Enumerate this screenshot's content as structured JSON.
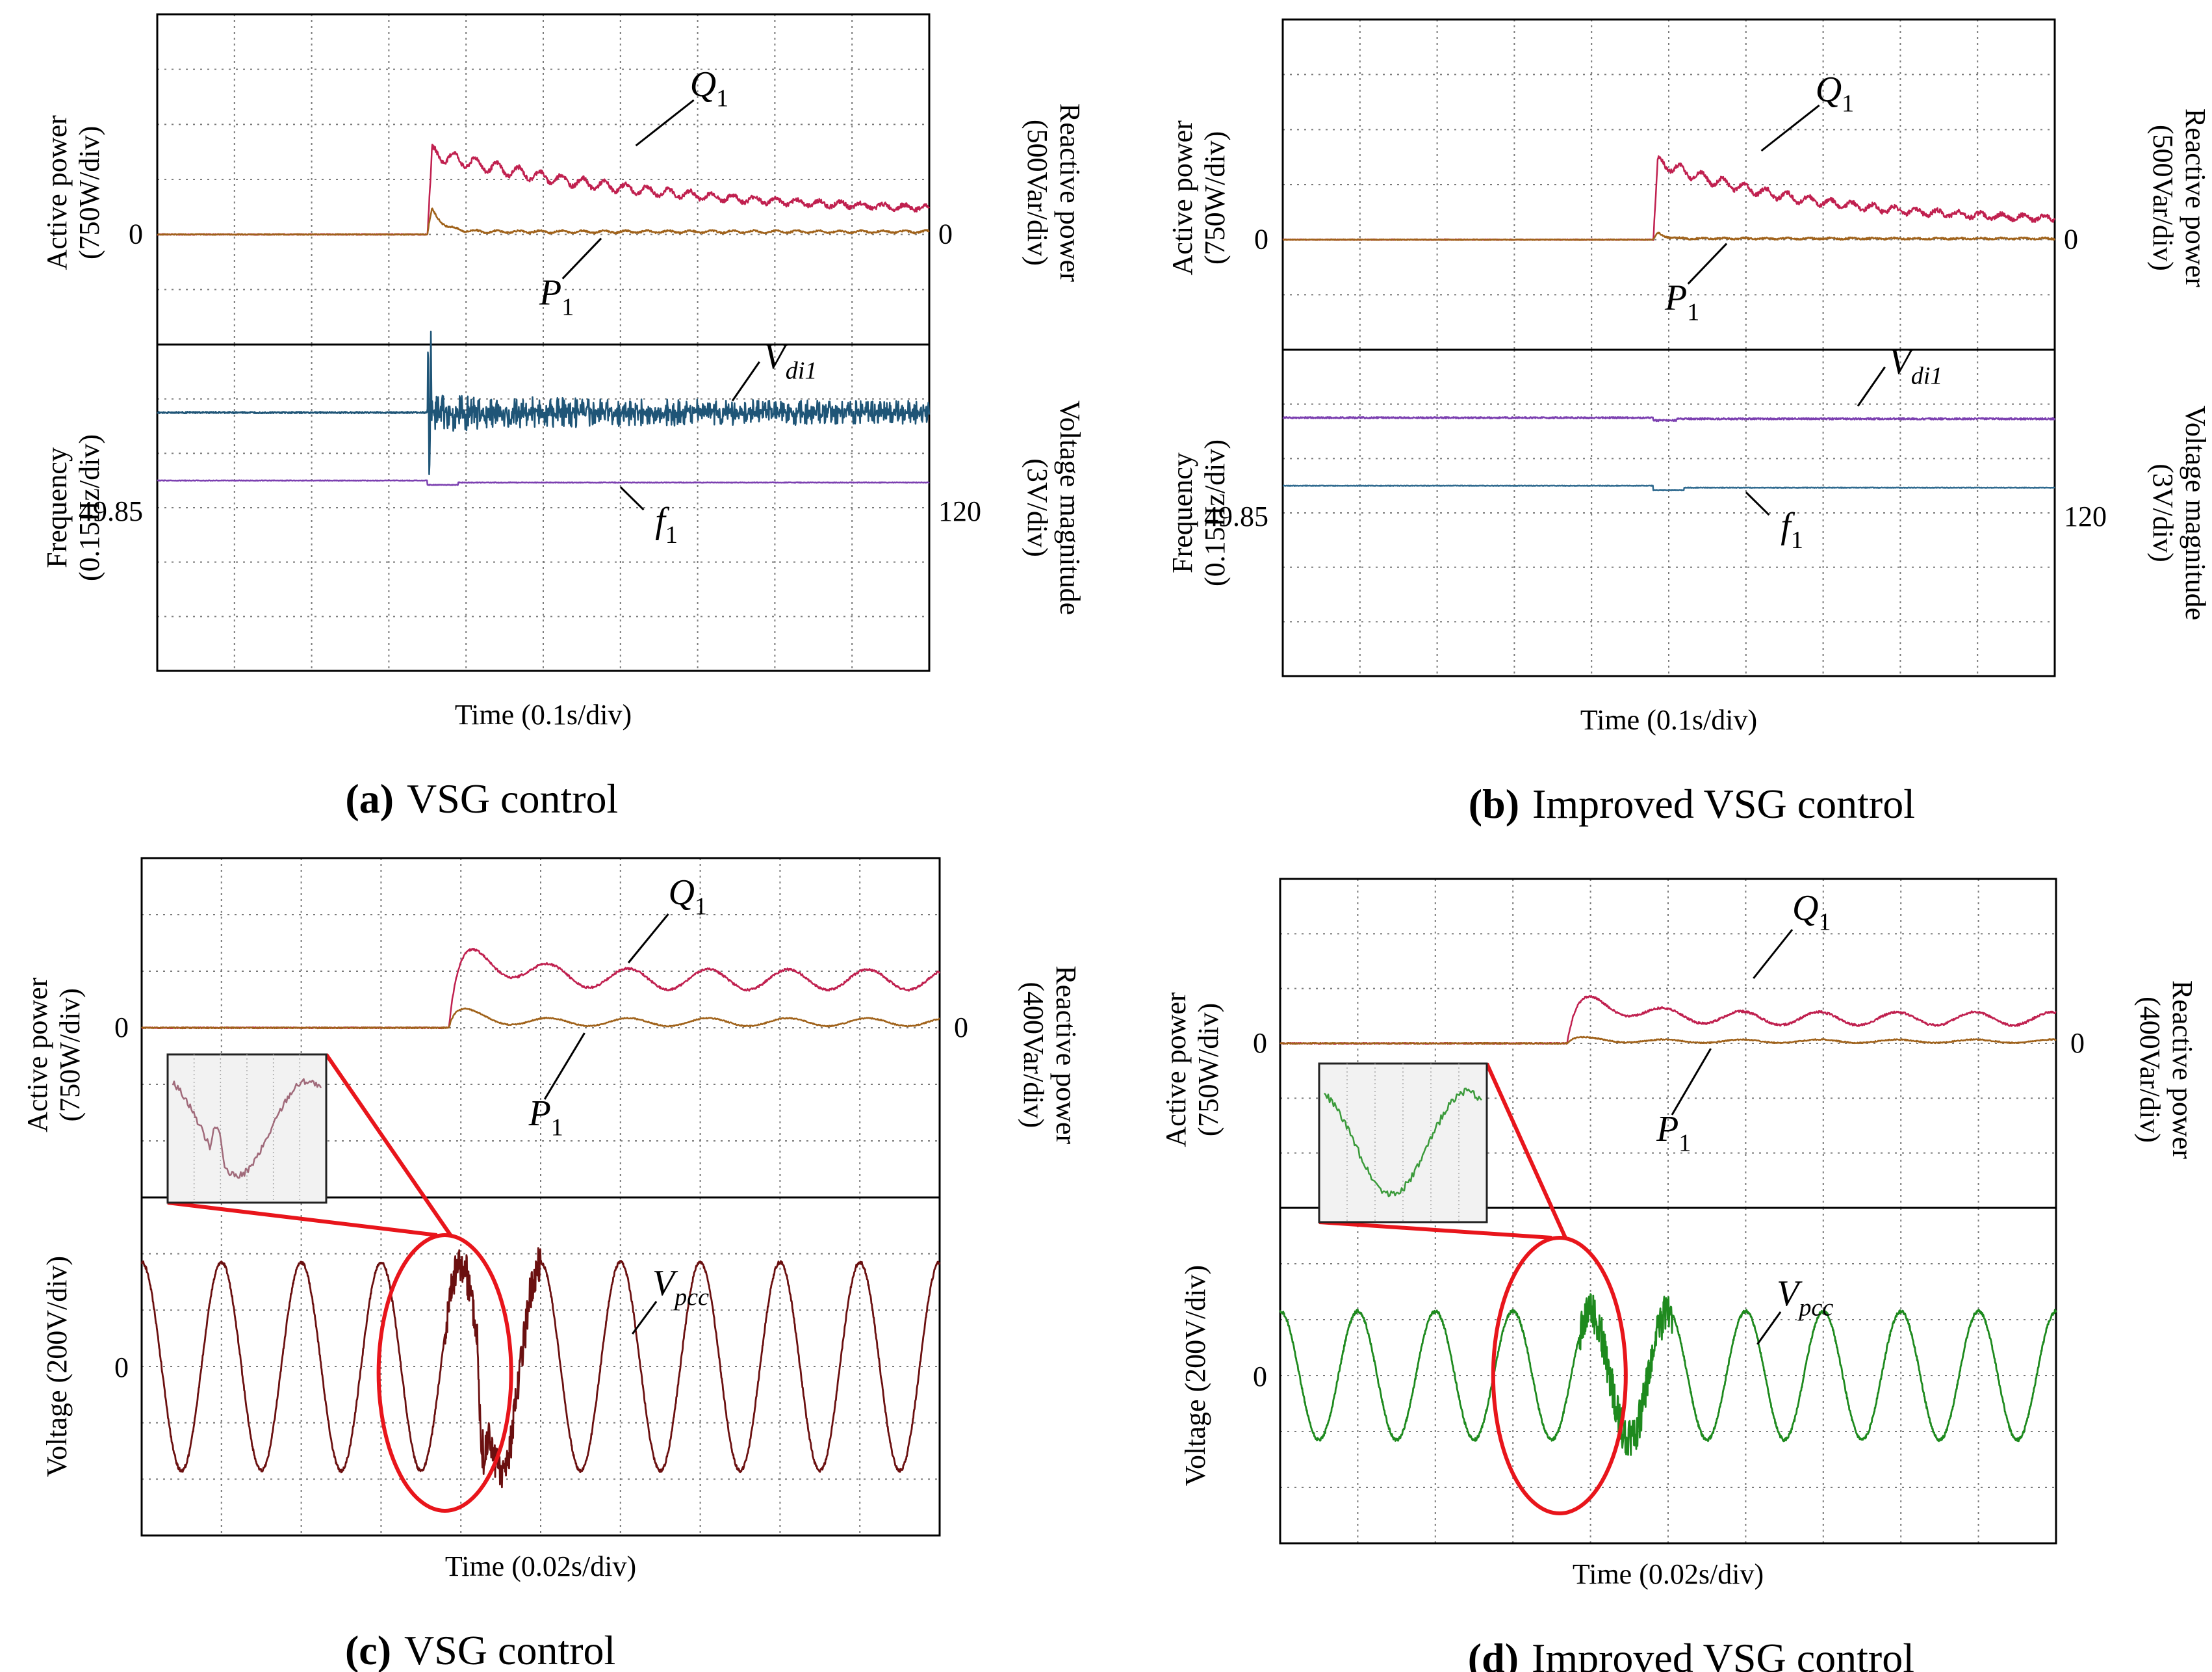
{
  "colors": {
    "background": "#ffffff",
    "frame": "#000000",
    "grid": "#7a7a7a",
    "q_trace": "#c0204f",
    "p_trace": "#a0621a",
    "vdi_trace_a": "#1f5577",
    "f_trace_a": "#7b3fb0",
    "vdi_trace_b": "#7b3fb0",
    "f_trace_b": "#2f6a8f",
    "vpcc_c": "#6b1010",
    "vpcc_d": "#1e8a1e",
    "highlight": "#e8151b",
    "inset_bg": "#f2f2f2"
  },
  "chart_data": [
    {
      "id": "a",
      "type": "line",
      "caption_letter": "(a)",
      "caption_text": "VSG control",
      "xlabel": "Time (0.1s/div)",
      "x_divisions": 10,
      "top_panel": {
        "left_ylabel": [
          "Active power",
          "(750W/div)"
        ],
        "right_ylabel": [
          "Reactive power",
          "(500Var/div)"
        ],
        "left_zero_label": "0",
        "right_zero_label": "0",
        "y_divisions": 6,
        "series": [
          {
            "name": "Q1",
            "unit": "div",
            "step_div": 3.5,
            "peak_div": 1.5,
            "settle_div": 0.35,
            "tau_div": 3.0,
            "ripple_div": 0.12
          },
          {
            "name": "P1",
            "unit": "div",
            "step_div": 3.5,
            "peak_div": 0.65,
            "settle_div": 0.05,
            "tau_div": 0.15,
            "ripple_div": 0.02
          }
        ],
        "labels": {
          "q_main": "Q",
          "q_sub": "1",
          "p_main": "P",
          "p_sub": "1"
        }
      },
      "bottom_panel": {
        "left_ylabel": [
          "Frequency",
          "(0.15Hz/div)"
        ],
        "right_ylabel": [
          "Voltage magnitude",
          "(3V/div)"
        ],
        "left_ref_label": "49.85",
        "right_ref_label": "120",
        "y_divisions": 6,
        "series": [
          {
            "name": "Vdi1",
            "unit": "div",
            "level_div": 4.75,
            "step_div": 3.5,
            "oscillation_div": 0.35
          },
          {
            "name": "f1",
            "unit": "div",
            "level_div": 3.5,
            "dip_div": 0.08
          }
        ],
        "labels": {
          "v_main": "V",
          "v_sub": "di1",
          "f_main": "f",
          "f_sub": "1"
        }
      }
    },
    {
      "id": "b",
      "type": "line",
      "caption_letter": "(b)",
      "caption_text": "Improved VSG control",
      "xlabel": "Time (0.1s/div)",
      "x_divisions": 10,
      "top_panel": {
        "left_ylabel": [
          "Active power",
          "(750W/div)"
        ],
        "right_ylabel": [
          "Reactive power",
          "(500Var/div)"
        ],
        "left_zero_label": "0",
        "right_zero_label": "0",
        "y_divisions": 6,
        "series": [
          {
            "name": "Q1",
            "unit": "div",
            "step_div": 4.8,
            "peak_div": 1.45,
            "settle_div": 0.3,
            "tau_div": 2.0,
            "ripple_div": 0.1
          },
          {
            "name": "P1",
            "unit": "div",
            "step_div": 4.8,
            "peak_div": 0.2,
            "settle_div": 0.02,
            "tau_div": 0.1,
            "ripple_div": 0.01
          }
        ],
        "labels": {
          "q_main": "Q",
          "q_sub": "1",
          "p_main": "P",
          "p_sub": "1"
        }
      },
      "bottom_panel": {
        "left_ylabel": [
          "Frequency",
          "(0.15Hz/div)"
        ],
        "right_ylabel": [
          "Voltage magnitude",
          "(3V/div)"
        ],
        "left_ref_label": "49.85",
        "right_ref_label": "120",
        "y_divisions": 6,
        "series": [
          {
            "name": "Vdi1",
            "unit": "div",
            "level_div": 4.75,
            "step_div": 4.8,
            "dip_div": 0.05
          },
          {
            "name": "f1",
            "unit": "div",
            "level_div": 3.5,
            "dip_div": 0.08
          }
        ],
        "labels": {
          "v_main": "V",
          "v_sub": "di1",
          "f_main": "f",
          "f_sub": "1"
        }
      }
    },
    {
      "id": "c",
      "type": "line",
      "caption_letter": "(c)",
      "caption_text": "VSG control",
      "xlabel": "Time (0.02s/div)",
      "x_divisions": 10,
      "top_panel": {
        "left_ylabel": [
          "Active power",
          "(750W/div)"
        ],
        "right_ylabel": [
          "Reactive power",
          "(400Var/div)"
        ],
        "left_zero_label": "0",
        "right_zero_label": "0",
        "y_divisions": 6,
        "series": [
          {
            "name": "Q1",
            "unit": "div",
            "step_div": 3.85,
            "peak_div": 1.65,
            "settle_div": 0.85,
            "ripple_div": 0.18
          },
          {
            "name": "P1",
            "unit": "div",
            "step_div": 3.85,
            "peak_div": 0.65,
            "settle_div": 0.1,
            "ripple_div": 0.07
          }
        ],
        "labels": {
          "q_main": "Q",
          "q_sub": "1",
          "p_main": "P",
          "p_sub": "1"
        }
      },
      "bottom_panel": {
        "left_ylabel": [
          "Voltage (200V/div)"
        ],
        "left_ref_label": "0",
        "y_divisions": 6,
        "series": [
          {
            "name": "Vpcc",
            "unit": "div",
            "amplitude_div": 1.85,
            "cycles": 10,
            "disturbance_div": 3.8
          }
        ],
        "labels": {
          "v_main": "V",
          "v_sub": "pcc"
        }
      }
    },
    {
      "id": "d",
      "type": "line",
      "caption_letter": "(d)",
      "caption_text": "Improved VSG control",
      "xlabel": "Time (0.02s/div)",
      "x_divisions": 10,
      "top_panel": {
        "left_ylabel": [
          "Active power",
          "(750W/div)"
        ],
        "right_ylabel": [
          "Reactive power",
          "(400Var/div)"
        ],
        "left_zero_label": "0",
        "right_zero_label": "0",
        "y_divisions": 6,
        "series": [
          {
            "name": "Q1",
            "unit": "div",
            "step_div": 3.7,
            "peak_div": 1.05,
            "settle_div": 0.45,
            "ripple_div": 0.12
          },
          {
            "name": "P1",
            "unit": "div",
            "step_div": 3.7,
            "peak_div": 0.2,
            "settle_div": 0.04,
            "ripple_div": 0.03
          }
        ],
        "labels": {
          "q_main": "Q",
          "q_sub": "1",
          "p_main": "P",
          "p_sub": "1"
        }
      },
      "bottom_panel": {
        "left_ylabel": [
          "Voltage (200V/div)"
        ],
        "left_ref_label": "0",
        "y_divisions": 6,
        "series": [
          {
            "name": "Vpcc",
            "unit": "div",
            "amplitude_div": 1.15,
            "cycles": 10,
            "disturbance_div": 3.85
          }
        ],
        "labels": {
          "v_main": "V",
          "v_sub": "pcc"
        }
      }
    }
  ]
}
